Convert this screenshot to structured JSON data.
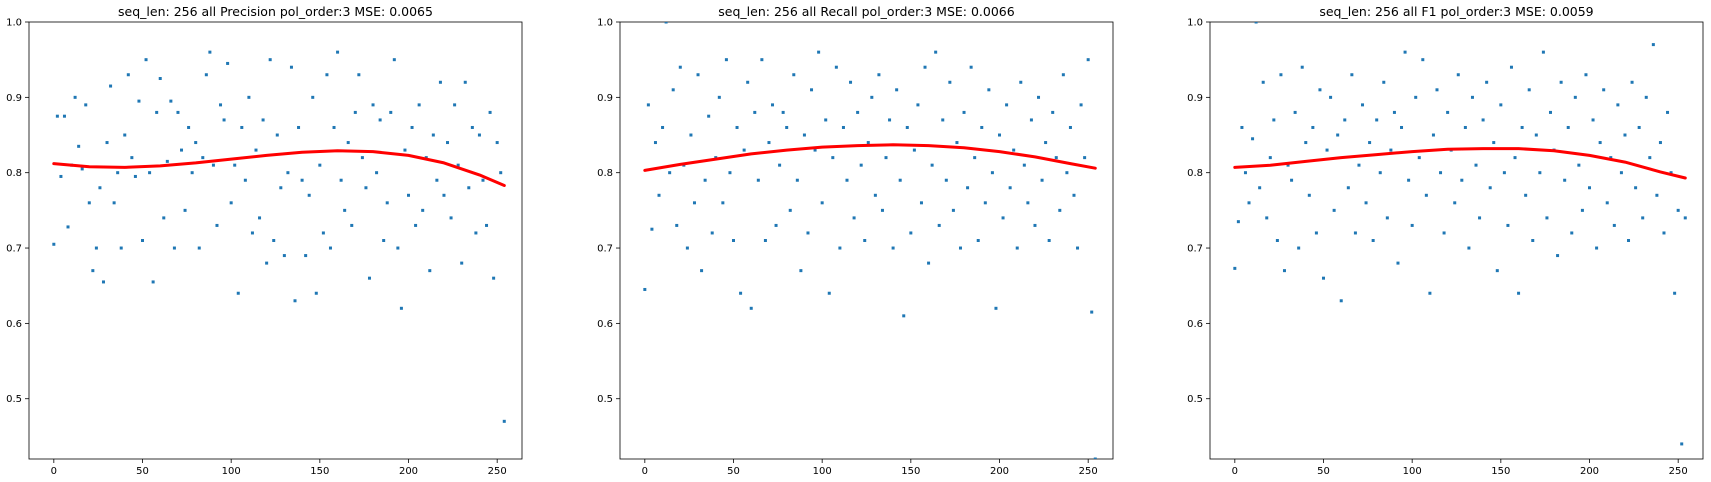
{
  "chart_data": [
    {
      "type": "scatter",
      "title": "seq_len: 256    all   Precision   pol_order:3   MSE: 0.0065",
      "xlabel": "",
      "ylabel": "",
      "xlim": [
        -14,
        264
      ],
      "ylim": [
        0.42,
        1.0
      ],
      "x_ticks": [
        "0",
        "50",
        "100",
        "150",
        "200",
        "250"
      ],
      "y_ticks": [
        "0.5",
        "0.6",
        "0.7",
        "0.8",
        "0.9",
        "1.0"
      ],
      "grid": false,
      "colors": {
        "points": "#1f77b4",
        "fit": "#ff0000"
      },
      "series": [
        {
          "kind": "points",
          "x": [
            0,
            2,
            4,
            6,
            8,
            10,
            12,
            14,
            16,
            18,
            20,
            22,
            24,
            26,
            28,
            30,
            32,
            34,
            36,
            38,
            40,
            42,
            44,
            46,
            48,
            50,
            52,
            54,
            56,
            58,
            60,
            62,
            64,
            66,
            68,
            70,
            72,
            74,
            76,
            78,
            80,
            82,
            84,
            86,
            88,
            90,
            92,
            94,
            96,
            98,
            100,
            102,
            104,
            106,
            108,
            110,
            112,
            114,
            116,
            118,
            120,
            122,
            124,
            126,
            128,
            130,
            132,
            134,
            136,
            138,
            140,
            142,
            144,
            146,
            148,
            150,
            152,
            154,
            156,
            158,
            160,
            162,
            164,
            166,
            168,
            170,
            172,
            174,
            176,
            178,
            180,
            182,
            184,
            186,
            188,
            190,
            192,
            194,
            196,
            198,
            200,
            202,
            204,
            206,
            208,
            210,
            212,
            214,
            216,
            218,
            220,
            222,
            224,
            226,
            228,
            230,
            232,
            234,
            236,
            238,
            240,
            242,
            244,
            246,
            248,
            250,
            252,
            254
          ],
          "y": [
            0.705,
            0.875,
            0.795,
            0.875,
            0.728,
            0.81,
            0.9,
            0.835,
            0.805,
            0.89,
            0.76,
            0.67,
            0.7,
            0.78,
            0.655,
            0.84,
            0.915,
            0.76,
            0.8,
            0.7,
            0.85,
            0.93,
            0.82,
            0.795,
            0.895,
            0.71,
            0.95,
            0.8,
            0.655,
            0.88,
            0.925,
            0.74,
            0.815,
            0.895,
            0.7,
            0.88,
            0.83,
            0.75,
            0.86,
            0.8,
            0.84,
            0.7,
            0.82,
            0.93,
            0.96,
            0.81,
            0.73,
            0.89,
            0.87,
            0.945,
            0.76,
            0.81,
            0.64,
            0.86,
            0.79,
            0.9,
            0.72,
            0.83,
            0.74,
            0.87,
            0.68,
            0.95,
            0.71,
            0.85,
            0.78,
            0.69,
            0.8,
            0.94,
            0.63,
            0.86,
            0.79,
            0.69,
            0.77,
            0.9,
            0.64,
            0.81,
            0.72,
            0.93,
            0.7,
            0.86,
            0.96,
            0.79,
            0.75,
            0.84,
            0.73,
            0.88,
            0.93,
            0.82,
            0.78,
            0.66,
            0.89,
            0.8,
            0.87,
            0.71,
            0.76,
            0.88,
            0.95,
            0.7,
            0.62,
            0.83,
            0.77,
            0.86,
            0.73,
            0.89,
            0.75,
            0.82,
            0.67,
            0.85,
            0.79,
            0.92,
            0.77,
            0.84,
            0.74,
            0.89,
            0.81,
            0.68,
            0.92,
            0.78,
            0.86,
            0.72,
            0.85,
            0.79,
            0.73,
            0.88,
            0.66,
            0.84,
            0.8,
            0.47
          ]
        },
        {
          "kind": "fit",
          "x": [
            0,
            20,
            40,
            60,
            80,
            100,
            120,
            140,
            160,
            180,
            200,
            220,
            240,
            254
          ],
          "y": [
            0.812,
            0.808,
            0.807,
            0.809,
            0.813,
            0.818,
            0.823,
            0.827,
            0.829,
            0.828,
            0.823,
            0.813,
            0.797,
            0.783
          ]
        }
      ]
    },
    {
      "type": "scatter",
      "title": "seq_len: 256    all   Recall   pol_order:3   MSE: 0.0066",
      "xlabel": "",
      "ylabel": "",
      "xlim": [
        -14,
        264
      ],
      "ylim": [
        0.42,
        1.0
      ],
      "x_ticks": [
        "0",
        "50",
        "100",
        "150",
        "200",
        "250"
      ],
      "y_ticks": [
        "0.5",
        "0.6",
        "0.7",
        "0.8",
        "0.9",
        "1.0"
      ],
      "grid": false,
      "colors": {
        "points": "#1f77b4",
        "fit": "#ff0000"
      },
      "series": [
        {
          "kind": "points",
          "x": [
            0,
            2,
            4,
            6,
            8,
            10,
            12,
            14,
            16,
            18,
            20,
            22,
            24,
            26,
            28,
            30,
            32,
            34,
            36,
            38,
            40,
            42,
            44,
            46,
            48,
            50,
            52,
            54,
            56,
            58,
            60,
            62,
            64,
            66,
            68,
            70,
            72,
            74,
            76,
            78,
            80,
            82,
            84,
            86,
            88,
            90,
            92,
            94,
            96,
            98,
            100,
            102,
            104,
            106,
            108,
            110,
            112,
            114,
            116,
            118,
            120,
            122,
            124,
            126,
            128,
            130,
            132,
            134,
            136,
            138,
            140,
            142,
            144,
            146,
            148,
            150,
            152,
            154,
            156,
            158,
            160,
            162,
            164,
            166,
            168,
            170,
            172,
            174,
            176,
            178,
            180,
            182,
            184,
            186,
            188,
            190,
            192,
            194,
            196,
            198,
            200,
            202,
            204,
            206,
            208,
            210,
            212,
            214,
            216,
            218,
            220,
            222,
            224,
            226,
            228,
            230,
            232,
            234,
            236,
            238,
            240,
            242,
            244,
            246,
            248,
            250,
            252,
            254
          ],
          "y": [
            0.645,
            0.89,
            0.725,
            0.84,
            0.77,
            0.86,
            1.0,
            0.8,
            0.91,
            0.73,
            0.94,
            0.81,
            0.7,
            0.85,
            0.76,
            0.93,
            0.67,
            0.79,
            0.875,
            0.72,
            0.82,
            0.9,
            0.76,
            0.95,
            0.8,
            0.71,
            0.86,
            0.64,
            0.83,
            0.92,
            0.62,
            0.88,
            0.79,
            0.95,
            0.71,
            0.84,
            0.89,
            0.73,
            0.81,
            0.88,
            0.86,
            0.75,
            0.93,
            0.79,
            0.67,
            0.85,
            0.72,
            0.91,
            0.83,
            0.96,
            0.76,
            0.87,
            0.64,
            0.82,
            0.94,
            0.7,
            0.86,
            0.79,
            0.92,
            0.74,
            0.88,
            0.81,
            0.71,
            0.84,
            0.9,
            0.77,
            0.93,
            0.75,
            0.82,
            0.87,
            0.7,
            0.91,
            0.79,
            0.61,
            0.86,
            0.72,
            0.83,
            0.89,
            0.76,
            0.94,
            0.68,
            0.81,
            0.96,
            0.73,
            0.87,
            0.79,
            0.92,
            0.75,
            0.84,
            0.7,
            0.88,
            0.78,
            0.94,
            0.82,
            0.71,
            0.86,
            0.76,
            0.91,
            0.8,
            0.62,
            0.85,
            0.74,
            0.89,
            0.78,
            0.83,
            0.7,
            0.92,
            0.81,
            0.76,
            0.87,
            0.73,
            0.9,
            0.79,
            0.84,
            0.71,
            0.88,
            0.82,
            0.75,
            0.93,
            0.8,
            0.86,
            0.77,
            0.7,
            0.89,
            0.82,
            0.95,
            0.615,
            0.42
          ]
        },
        {
          "kind": "fit",
          "x": [
            0,
            20,
            40,
            60,
            80,
            100,
            120,
            140,
            160,
            180,
            200,
            220,
            240,
            254
          ],
          "y": [
            0.803,
            0.811,
            0.818,
            0.825,
            0.83,
            0.834,
            0.836,
            0.837,
            0.836,
            0.833,
            0.828,
            0.821,
            0.812,
            0.806
          ]
        }
      ]
    },
    {
      "type": "scatter",
      "title": "seq_len: 256    all   F1   pol_order:3   MSE: 0.0059",
      "xlabel": "",
      "ylabel": "",
      "xlim": [
        -14,
        264
      ],
      "ylim": [
        0.42,
        1.0
      ],
      "x_ticks": [
        "0",
        "50",
        "100",
        "150",
        "200",
        "250"
      ],
      "y_ticks": [
        "0.5",
        "0.6",
        "0.7",
        "0.8",
        "0.9",
        "1.0"
      ],
      "grid": false,
      "colors": {
        "points": "#1f77b4",
        "fit": "#ff0000"
      },
      "series": [
        {
          "kind": "points",
          "x": [
            0,
            2,
            4,
            6,
            8,
            10,
            12,
            14,
            16,
            18,
            20,
            22,
            24,
            26,
            28,
            30,
            32,
            34,
            36,
            38,
            40,
            42,
            44,
            46,
            48,
            50,
            52,
            54,
            56,
            58,
            60,
            62,
            64,
            66,
            68,
            70,
            72,
            74,
            76,
            78,
            80,
            82,
            84,
            86,
            88,
            90,
            92,
            94,
            96,
            98,
            100,
            102,
            104,
            106,
            108,
            110,
            112,
            114,
            116,
            118,
            120,
            122,
            124,
            126,
            128,
            130,
            132,
            134,
            136,
            138,
            140,
            142,
            144,
            146,
            148,
            150,
            152,
            154,
            156,
            158,
            160,
            162,
            164,
            166,
            168,
            170,
            172,
            174,
            176,
            178,
            180,
            182,
            184,
            186,
            188,
            190,
            192,
            194,
            196,
            198,
            200,
            202,
            204,
            206,
            208,
            210,
            212,
            214,
            216,
            218,
            220,
            222,
            224,
            226,
            228,
            230,
            232,
            234,
            236,
            238,
            240,
            242,
            244,
            246,
            248,
            250,
            252,
            254
          ],
          "y": [
            0.673,
            0.735,
            0.86,
            0.8,
            0.76,
            0.845,
            1.0,
            0.78,
            0.92,
            0.74,
            0.82,
            0.87,
            0.71,
            0.93,
            0.67,
            0.81,
            0.79,
            0.88,
            0.7,
            0.94,
            0.84,
            0.77,
            0.86,
            0.72,
            0.91,
            0.66,
            0.83,
            0.9,
            0.75,
            0.85,
            0.63,
            0.87,
            0.78,
            0.93,
            0.72,
            0.81,
            0.89,
            0.76,
            0.84,
            0.71,
            0.87,
            0.8,
            0.92,
            0.74,
            0.83,
            0.88,
            0.68,
            0.86,
            0.96,
            0.79,
            0.73,
            0.9,
            0.82,
            0.95,
            0.77,
            0.64,
            0.85,
            0.91,
            0.8,
            0.72,
            0.88,
            0.83,
            0.76,
            0.93,
            0.79,
            0.86,
            0.7,
            0.9,
            0.81,
            0.74,
            0.87,
            0.92,
            0.78,
            0.84,
            0.67,
            0.89,
            0.8,
            0.73,
            0.94,
            0.82,
            0.64,
            0.86,
            0.77,
            0.91,
            0.71,
            0.85,
            0.8,
            0.96,
            0.74,
            0.88,
            0.83,
            0.69,
            0.92,
            0.79,
            0.86,
            0.72,
            0.9,
            0.81,
            0.75,
            0.93,
            0.78,
            0.87,
            0.7,
            0.84,
            0.91,
            0.76,
            0.82,
            0.73,
            0.89,
            0.8,
            0.85,
            0.71,
            0.92,
            0.78,
            0.86,
            0.74,
            0.9,
            0.82,
            0.97,
            0.77,
            0.84,
            0.72,
            0.88,
            0.8,
            0.64,
            0.75,
            0.44,
            0.74
          ]
        },
        {
          "kind": "fit",
          "x": [
            0,
            20,
            40,
            60,
            80,
            100,
            120,
            140,
            160,
            180,
            200,
            220,
            240,
            254
          ],
          "y": [
            0.807,
            0.81,
            0.815,
            0.82,
            0.824,
            0.828,
            0.831,
            0.832,
            0.832,
            0.829,
            0.823,
            0.814,
            0.801,
            0.793
          ]
        }
      ]
    }
  ]
}
